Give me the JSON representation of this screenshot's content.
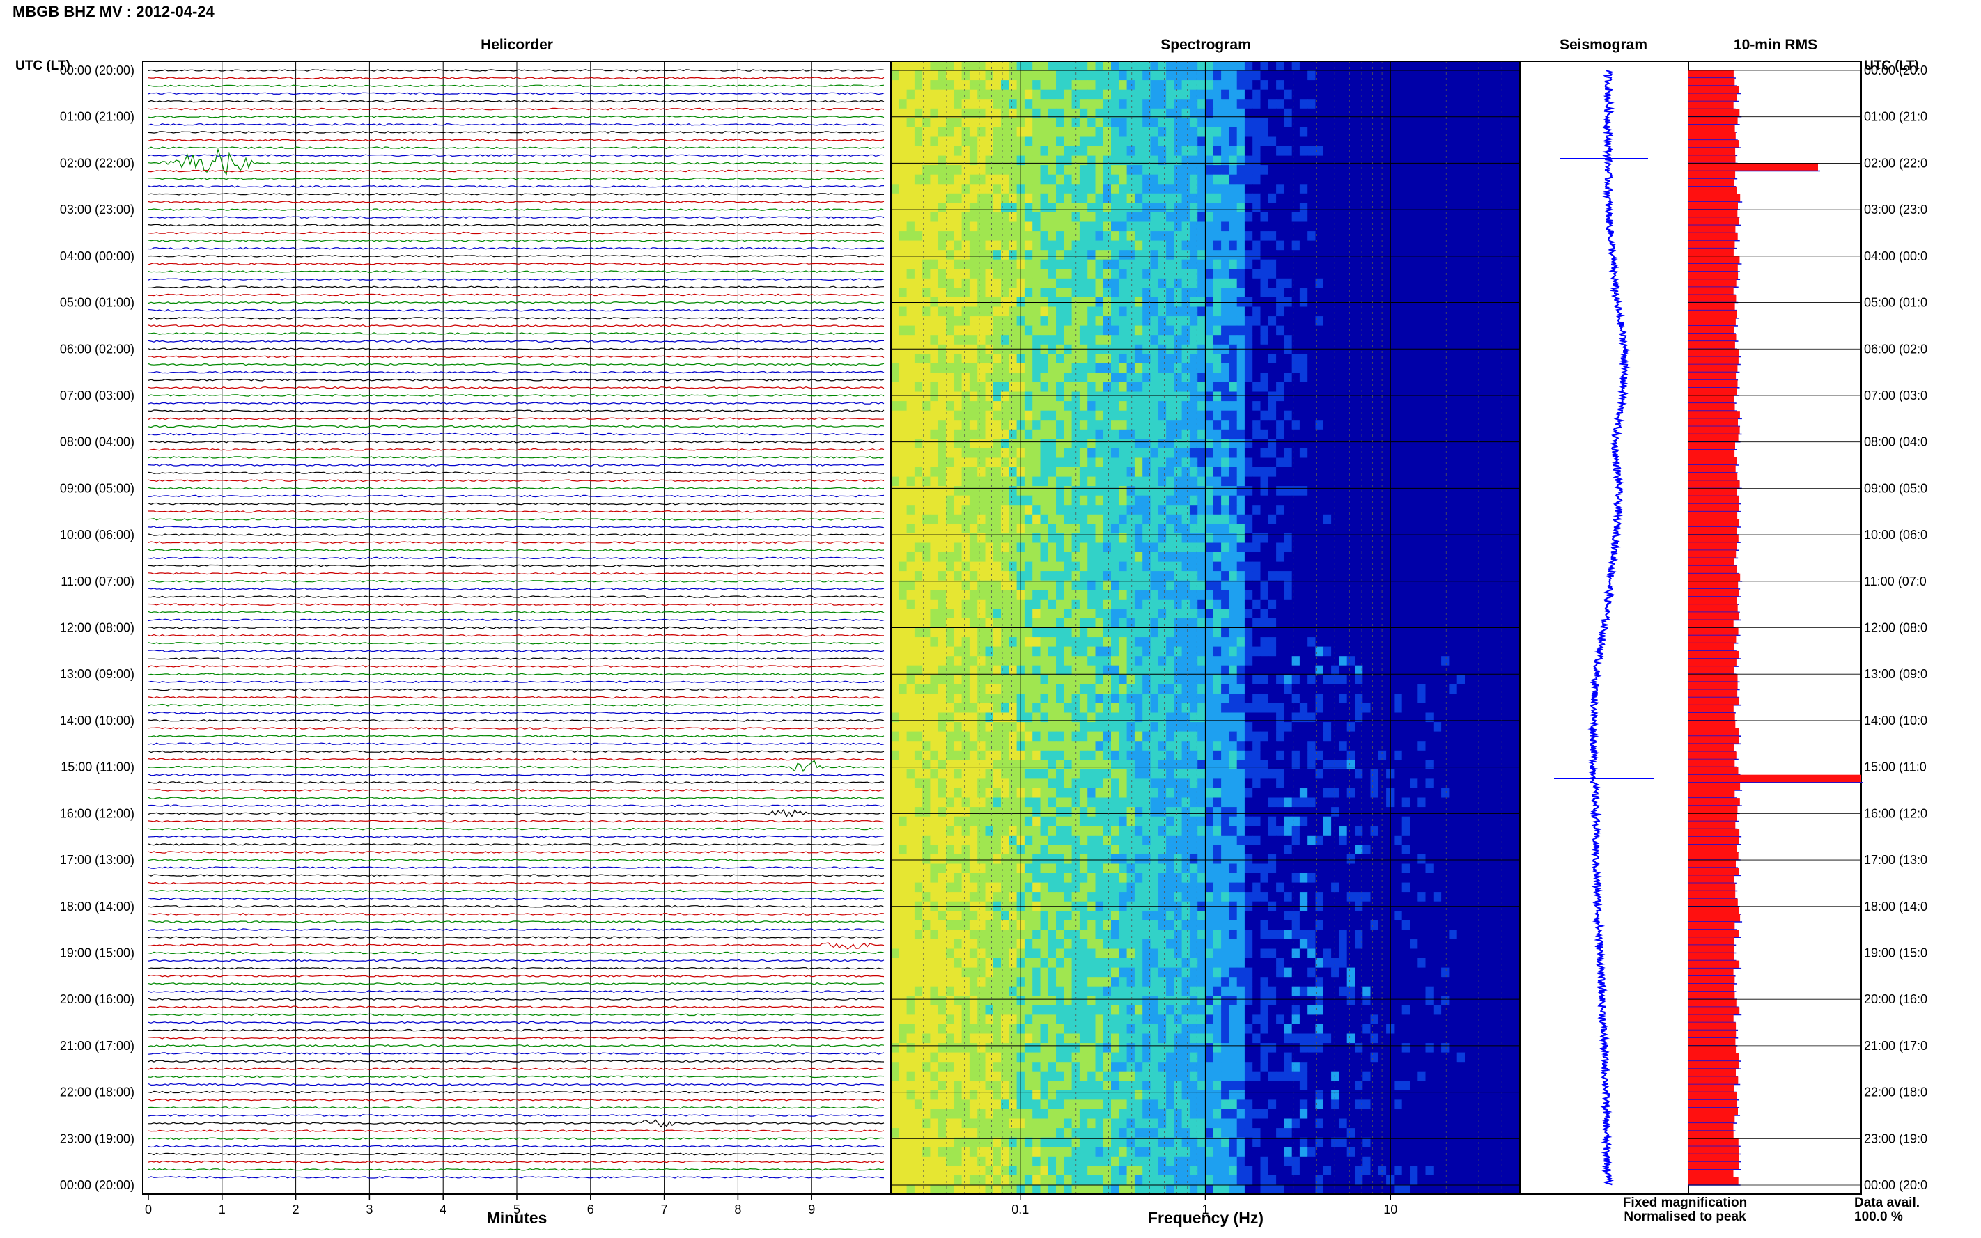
{
  "page_title": "MBGB BHZ MV : 2012-04-24",
  "left_axis_header": "UTC (LT)",
  "right_axis_header": "UTC (LT)",
  "time_labels": [
    "00:00 (20:00)",
    "01:00 (21:00)",
    "02:00 (22:00)",
    "03:00 (23:00)",
    "04:00 (00:00)",
    "05:00 (01:00)",
    "06:00 (02:00)",
    "07:00 (03:00)",
    "08:00 (04:00)",
    "09:00 (05:00)",
    "10:00 (06:00)",
    "11:00 (07:00)",
    "12:00 (08:00)",
    "13:00 (09:00)",
    "14:00 (10:00)",
    "15:00 (11:00)",
    "16:00 (12:00)",
    "17:00 (13:00)",
    "18:00 (14:00)",
    "19:00 (15:00)",
    "20:00 (16:00)",
    "21:00 (17:00)",
    "22:00 (18:00)",
    "23:00 (19:00)",
    "00:00 (20:00)"
  ],
  "right_time_labels": [
    "00:00 (20:0",
    "01:00 (21:0",
    "02:00 (22:0",
    "03:00 (23:0",
    "04:00 (00:0",
    "05:00 (01:0",
    "06:00 (02:0",
    "07:00 (03:0",
    "08:00 (04:0",
    "09:00 (05:0",
    "10:00 (06:0",
    "11:00 (07:0",
    "12:00 (08:0",
    "13:00 (09:0",
    "14:00 (10:0",
    "15:00 (11:0",
    "16:00 (12:0",
    "17:00 (13:0",
    "18:00 (14:0",
    "19:00 (15:0",
    "20:00 (16:0",
    "21:00 (17:0",
    "22:00 (18:0",
    "23:00 (19:0",
    "00:00 (20:0"
  ],
  "legend": {
    "fixed_label": "Fixed magnification",
    "normalised_label": "Normalised to peak",
    "fixed_color": "#0000ff",
    "normalised_color": "#ff0000"
  },
  "data_avail": {
    "label": "Data avail.",
    "value": "100.0 %"
  },
  "colors": {
    "helicorder_traces": [
      "#000000",
      "#cc0000",
      "#008800",
      "#0000cc"
    ],
    "rms_bar": "#ff1010",
    "rms_fixed": "#1010dd",
    "seismogram": "#0000ff"
  },
  "chart_data": [
    {
      "type": "line",
      "title": "Helicorder",
      "xlabel": "Minutes",
      "ylabel": "UTC (LT)",
      "x_ticks": [
        "0",
        "1",
        "2",
        "3",
        "4",
        "5",
        "6",
        "7",
        "8",
        "9"
      ],
      "xlim": [
        0,
        10
      ],
      "lines": 144,
      "minutes_per_line": 10,
      "events": [
        {
          "line": 12,
          "start_min": 0.1,
          "end_min": 1.5,
          "amplitude": "large"
        },
        {
          "line": 90,
          "start_min": 8.7,
          "end_min": 9.2,
          "amplitude": "medium"
        },
        {
          "line": 96,
          "start_min": 8.3,
          "end_min": 9.1,
          "amplitude": "small"
        },
        {
          "line": 113,
          "start_min": 9.0,
          "end_min": 10.0,
          "amplitude": "small"
        },
        {
          "line": 136,
          "start_min": 6.5,
          "end_min": 7.3,
          "amplitude": "small"
        }
      ]
    },
    {
      "type": "heatmap",
      "title": "Spectrogram",
      "xlabel": "Frequency (Hz)",
      "x_scale": "log",
      "xlim": [
        0.02,
        50
      ],
      "x_ticks": [
        "0.1",
        "1",
        "10"
      ],
      "colormap": [
        "#0000a8",
        "#0a3cdc",
        "#1ea0f0",
        "#32d2c8",
        "#a0e650",
        "#e6e632"
      ]
    },
    {
      "type": "line",
      "title": "Seismogram",
      "x_time_hours": [
        0,
        1,
        2,
        3,
        4,
        5,
        6,
        7,
        8,
        9,
        10,
        11,
        12,
        13,
        14,
        15,
        16,
        17,
        18,
        19,
        20,
        21,
        22,
        23,
        24
      ],
      "offset": [
        0.2,
        0.2,
        0.2,
        0.2,
        0.4,
        0.6,
        1.0,
        0.9,
        0.5,
        0.7,
        0.6,
        0.3,
        0.0,
        -0.4,
        -0.5,
        -0.5,
        -0.4,
        -0.4,
        -0.3,
        -0.2,
        -0.1,
        0.0,
        0.1,
        0.1,
        0.2
      ],
      "spikes": [
        {
          "hour": 1.9,
          "amplitude": 7
        },
        {
          "hour": 15.25,
          "amplitude": 8
        }
      ]
    },
    {
      "type": "bar",
      "title": "10-min RMS",
      "orientation": "horizontal",
      "bins": 144,
      "baseline_normalised": 0.28,
      "peaks": [
        {
          "bin": 12,
          "value": 0.75
        },
        {
          "bin": 91,
          "value": 1.0
        }
      ]
    }
  ]
}
